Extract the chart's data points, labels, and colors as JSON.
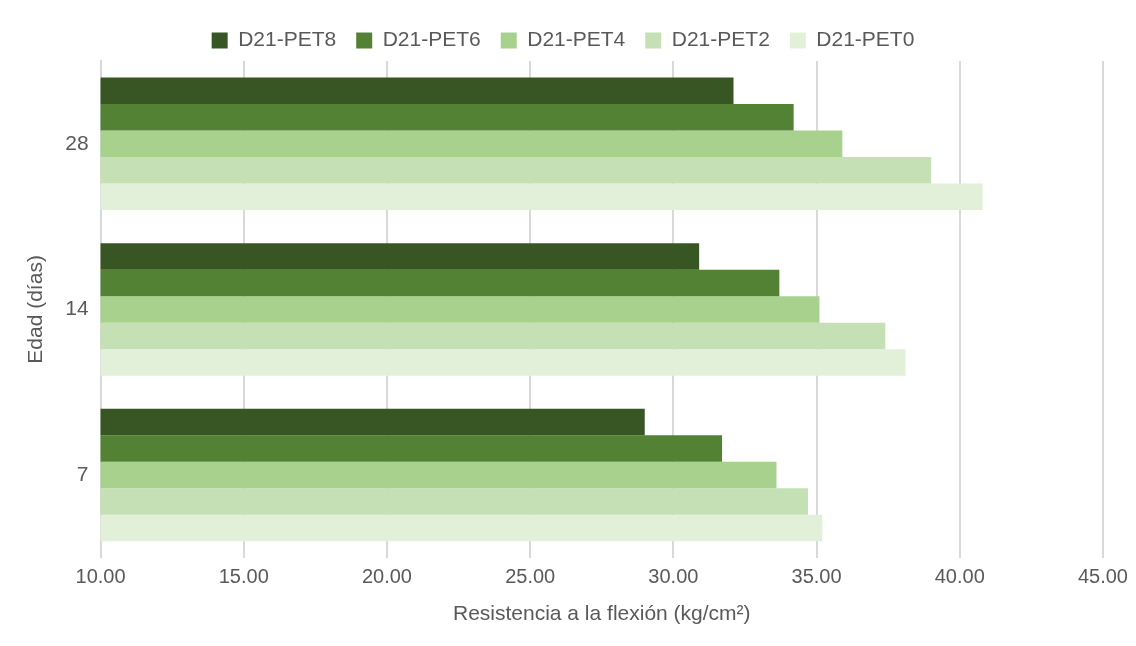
{
  "chart_data": {
    "type": "bar",
    "orientation": "horizontal",
    "xlabel": "Resistencia a la flexión (kg/cm²)",
    "ylabel": "Edad (días)",
    "categories": [
      "28",
      "14",
      "7"
    ],
    "series": [
      {
        "name": "D21-PET8",
        "color": "#375623",
        "values": [
          32.1,
          30.9,
          29.0
        ]
      },
      {
        "name": "D21-PET6",
        "color": "#548235",
        "values": [
          34.2,
          33.7,
          31.7
        ]
      },
      {
        "name": "D21-PET4",
        "color": "#a9d18e",
        "values": [
          35.9,
          35.1,
          33.6
        ]
      },
      {
        "name": "D21-PET2",
        "color": "#c5e0b4",
        "values": [
          39.0,
          37.4,
          34.7
        ]
      },
      {
        "name": "D21-PET0",
        "color": "#e2f0d9",
        "values": [
          40.8,
          38.1,
          35.2
        ]
      }
    ],
    "xlim": [
      10,
      45
    ],
    "xticks": [
      {
        "value": 10,
        "label": "10.00"
      },
      {
        "value": 15,
        "label": "15.00"
      },
      {
        "value": 20,
        "label": "20.00"
      },
      {
        "value": 25,
        "label": "25.00"
      },
      {
        "value": 30,
        "label": "30.00"
      },
      {
        "value": 35,
        "label": "35.00"
      },
      {
        "value": 40,
        "label": "40.00"
      },
      {
        "value": 45,
        "label": "45.00"
      }
    ],
    "grid": "x",
    "legend": "top"
  }
}
